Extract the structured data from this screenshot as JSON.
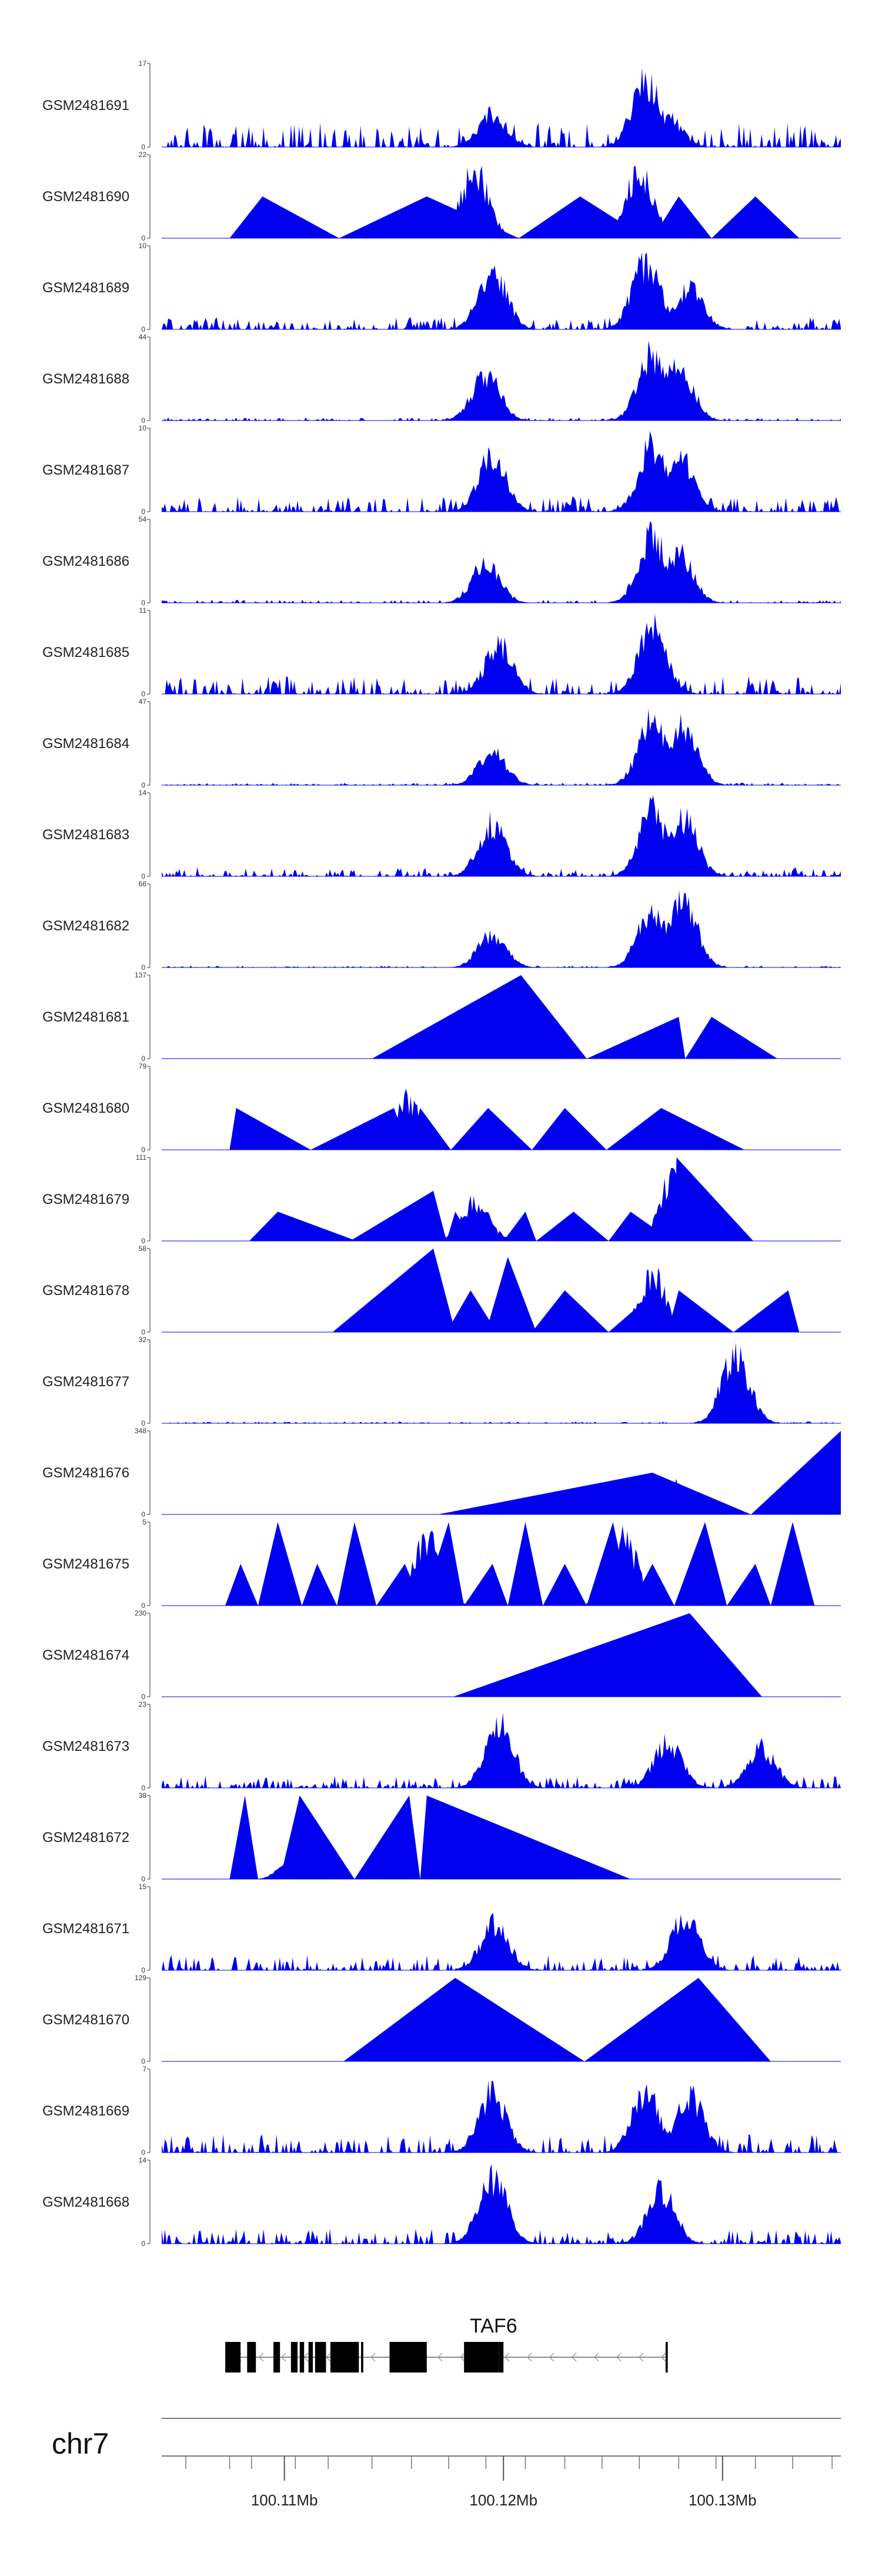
{
  "chart_data": {
    "type": "area",
    "description_free": true,
    "fill_color": "#0000f0",
    "tracks": [
      {
        "name": "GSM2481691",
        "ymax": "17",
        "ymin": "0",
        "noise": 4,
        "peaks": [
          [
            100.1195,
            0.5
          ],
          [
            100.1265,
            1.0
          ],
          [
            100.1275,
            0.45
          ]
        ],
        "tris": []
      },
      {
        "name": "GSM2481690",
        "ymax": "22",
        "ymin": "0",
        "noise": 0,
        "peaks": [
          [
            100.1187,
            1.0
          ],
          [
            100.1262,
            1.0
          ]
        ],
        "tris": [
          [
            100.1075,
            100.109,
            100.1125,
            0.5
          ],
          [
            100.1125,
            100.1165,
            100.1207,
            0.5
          ],
          [
            100.1207,
            100.1235,
            100.1265,
            0.5
          ],
          [
            100.1268,
            100.128,
            100.1295,
            0.5
          ],
          [
            100.1295,
            100.1315,
            100.1335,
            0.5
          ]
        ]
      },
      {
        "name": "GSM2481689",
        "ymax": "10",
        "ymin": "0",
        "noise": 2,
        "peaks": [
          [
            100.1195,
            0.9
          ],
          [
            100.1265,
            1.0
          ],
          [
            100.1285,
            0.6
          ]
        ],
        "tris": []
      },
      {
        "name": "GSM2481688",
        "ymax": "44",
        "ymin": "0",
        "noise": 0.5,
        "peaks": [
          [
            100.1192,
            0.7
          ],
          [
            100.1268,
            1.0
          ],
          [
            100.128,
            0.85
          ]
        ],
        "tris": []
      },
      {
        "name": "GSM2481687",
        "ymax": "10",
        "ymin": "0",
        "noise": 2.5,
        "peaks": [
          [
            100.1195,
            0.85
          ],
          [
            100.1268,
            1.0
          ],
          [
            100.128,
            0.9
          ]
        ],
        "tris": []
      },
      {
        "name": "GSM2481686",
        "ymax": "54",
        "ymin": "0",
        "noise": 0.5,
        "peaks": [
          [
            100.1192,
            0.6
          ],
          [
            100.1268,
            1.0
          ],
          [
            100.128,
            0.75
          ]
        ],
        "tris": []
      },
      {
        "name": "GSM2481685",
        "ymax": "11",
        "ymin": "0",
        "noise": 3,
        "peaks": [
          [
            100.1198,
            0.75
          ],
          [
            100.1268,
            1.0
          ]
        ],
        "tris": []
      },
      {
        "name": "GSM2481684",
        "ymax": "47",
        "ymin": "0",
        "noise": 0.4,
        "peaks": [
          [
            100.1195,
            0.5
          ],
          [
            100.1268,
            1.0
          ],
          [
            100.1282,
            0.9
          ]
        ],
        "tris": []
      },
      {
        "name": "GSM2481683",
        "ymax": "14",
        "ymin": "0",
        "noise": 1.5,
        "peaks": [
          [
            100.1195,
            0.8
          ],
          [
            100.1268,
            1.0
          ],
          [
            100.1282,
            0.9
          ]
        ],
        "tris": []
      },
      {
        "name": "GSM2481682",
        "ymax": "66",
        "ymin": "0",
        "noise": 0.3,
        "peaks": [
          [
            100.1195,
            0.5
          ],
          [
            100.1268,
            0.9
          ],
          [
            100.1282,
            1.0
          ]
        ],
        "tris": []
      },
      {
        "name": "GSM2481681",
        "ymax": "137",
        "ymin": "0",
        "noise": 0,
        "peaks": [
          [
            100.1208,
            0.4
          ]
        ],
        "tris": [
          [
            100.114,
            100.1208,
            100.1238,
            1.0
          ],
          [
            100.1238,
            100.128,
            100.1283,
            0.5
          ],
          [
            100.1283,
            100.1295,
            100.1325,
            0.5
          ]
        ]
      },
      {
        "name": "GSM2481680",
        "ymax": "79",
        "ymin": "0",
        "noise": 0,
        "peaks": [
          [
            100.1155,
            0.8
          ]
        ],
        "tris": [
          [
            100.1075,
            100.1078,
            100.1112,
            0.5
          ],
          [
            100.1112,
            100.115,
            100.1157,
            0.5
          ],
          [
            100.1157,
            100.1162,
            100.1176,
            0.5
          ],
          [
            100.1176,
            100.1193,
            100.1213,
            0.5
          ],
          [
            100.1213,
            100.1228,
            100.1247,
            0.5
          ],
          [
            100.1247,
            100.1272,
            100.131,
            0.5
          ]
        ]
      },
      {
        "name": "GSM2481679",
        "ymax": "111",
        "ymin": "0",
        "noise": 0,
        "peaks": [
          [
            100.1187,
            0.6
          ],
          [
            100.1278,
            1.0
          ]
        ],
        "tris": [
          [
            100.1084,
            100.1097,
            100.1133,
            0.35
          ],
          [
            100.113,
            100.1168,
            100.1174,
            0.6
          ],
          [
            100.1174,
            100.1178,
            100.1186,
            0.35
          ],
          [
            100.1186,
            100.1193,
            100.1198,
            0.35
          ],
          [
            100.12,
            100.121,
            100.1215,
            0.35
          ],
          [
            100.1215,
            100.1232,
            100.1248,
            0.35
          ],
          [
            100.1248,
            100.1258,
            100.1277,
            0.35
          ],
          [
            100.1278,
            100.1279,
            100.1314,
            1.0
          ]
        ]
      },
      {
        "name": "GSM2481678",
        "ymax": "58",
        "ymin": "0",
        "noise": 0,
        "peaks": [
          [
            100.1268,
            0.85
          ]
        ],
        "tris": [
          [
            100.1122,
            100.1168,
            100.1178,
            1.0
          ],
          [
            100.1174,
            100.1185,
            100.1197,
            0.5
          ],
          [
            100.1192,
            100.1202,
            100.1215,
            0.9
          ],
          [
            100.1213,
            100.1228,
            100.1248,
            0.5
          ],
          [
            100.1248,
            100.127,
            100.1275,
            0.5
          ],
          [
            100.1275,
            100.128,
            100.1305,
            0.5
          ],
          [
            100.1305,
            100.133,
            100.1335,
            0.5
          ]
        ]
      },
      {
        "name": "GSM2481677",
        "ymax": "32",
        "ymin": "0",
        "noise": 0.3,
        "peaks": [
          [
            100.1306,
            1.0
          ]
        ],
        "tris": []
      },
      {
        "name": "GSM2481676",
        "ymax": "348",
        "ymin": "0",
        "noise": 0,
        "peaks": [
          [
            100.1277,
            0.45
          ]
        ],
        "tris": [
          [
            100.117,
            100.1268,
            100.1313,
            0.5
          ],
          [
            100.1313,
            100.1354,
            100.1354,
            1.0
          ]
        ]
      },
      {
        "name": "GSM2481675",
        "ymax": "5",
        "ymin": "0",
        "noise": 0,
        "peaks": [
          [
            100.1165,
            1.0
          ],
          [
            100.1255,
            1.0
          ]
        ],
        "tris": [
          [
            100.1073,
            100.108,
            100.1088,
            0.5
          ],
          [
            100.1088,
            100.1097,
            100.1108,
            1.0
          ],
          [
            100.1108,
            100.1115,
            100.1124,
            0.5
          ],
          [
            100.1124,
            100.1132,
            100.1142,
            1.0
          ],
          [
            100.1142,
            100.1155,
            100.1163,
            0.5
          ],
          [
            100.1163,
            100.1175,
            100.1182,
            1.0
          ],
          [
            100.1182,
            100.1195,
            100.1202,
            0.5
          ],
          [
            100.1202,
            100.121,
            100.1218,
            1.0
          ],
          [
            100.1218,
            100.1228,
            100.1238,
            0.5
          ],
          [
            100.1238,
            100.125,
            100.1258,
            1.0
          ],
          [
            100.1258,
            100.1268,
            100.1278,
            0.5
          ],
          [
            100.1278,
            100.1292,
            100.1302,
            1.0
          ],
          [
            100.1302,
            100.1315,
            100.1322,
            0.5
          ],
          [
            100.1322,
            100.1332,
            100.1342,
            1.0
          ]
        ]
      },
      {
        "name": "GSM2481674",
        "ymax": "230",
        "ymin": "0",
        "noise": 0,
        "peaks": [],
        "tris": [
          [
            100.1177,
            100.1285,
            100.1318,
            1.0
          ]
        ]
      },
      {
        "name": "GSM2481673",
        "ymax": "23",
        "ymin": "0",
        "noise": 2,
        "peaks": [
          [
            100.1198,
            1.0
          ],
          [
            100.1275,
            0.7
          ],
          [
            100.1318,
            0.6
          ]
        ],
        "tris": []
      },
      {
        "name": "GSM2481672",
        "ymax": "38",
        "ymin": "0",
        "noise": 0,
        "peaks": [
          [
            100.1107,
            0.6
          ]
        ],
        "tris": [
          [
            100.1075,
            100.1082,
            100.1088,
            1.0
          ],
          [
            100.1098,
            100.1107,
            100.1132,
            1.0
          ],
          [
            100.1132,
            100.1157,
            100.1162,
            1.0
          ],
          [
            100.1162,
            100.1165,
            100.1258,
            1.0
          ]
        ]
      },
      {
        "name": "GSM2481671",
        "ymax": "15",
        "ymin": "0",
        "noise": 2.5,
        "peaks": [
          [
            100.1196,
            0.7
          ],
          [
            100.1283,
            0.8
          ]
        ],
        "tris": []
      },
      {
        "name": "GSM2481670",
        "ymax": "129",
        "ymin": "0",
        "noise": 0,
        "peaks": [],
        "tris": [
          [
            100.1127,
            100.1178,
            100.1237,
            1.0
          ],
          [
            100.1237,
            100.1289,
            100.1322,
            1.0
          ]
        ]
      },
      {
        "name": "GSM2481669",
        "ymax": "7",
        "ymin": "0",
        "noise": 3,
        "peaks": [
          [
            100.1195,
            0.9
          ],
          [
            100.1265,
            0.9
          ],
          [
            100.1285,
            0.85
          ]
        ],
        "tris": []
      },
      {
        "name": "GSM2481668",
        "ymax": "14",
        "ymin": "0",
        "noise": 2.5,
        "peaks": [
          [
            100.1195,
            1.0
          ],
          [
            100.1272,
            0.8
          ]
        ],
        "tris": []
      }
    ],
    "gene": {
      "name": "TAF6",
      "start": 100.1073,
      "end": 100.1275,
      "strand": "-",
      "exons": [
        [
          100.1073,
          100.108
        ],
        [
          100.1083,
          100.1087
        ],
        [
          100.1095,
          100.1098
        ],
        [
          100.1103,
          100.1106
        ],
        [
          100.1107,
          100.1109
        ],
        [
          100.1111,
          100.1113
        ],
        [
          100.1114,
          100.1119
        ],
        [
          100.1121,
          100.1134
        ],
        [
          100.1135,
          100.1136
        ],
        [
          100.1148,
          100.1165
        ],
        [
          100.1182,
          100.1198
        ],
        [
          100.1198,
          100.12
        ],
        [
          100.1274,
          100.1275
        ]
      ]
    },
    "chromosome": "chr7",
    "x_axis": {
      "range": [
        100.1044,
        100.1354
      ],
      "major_ticks": [
        100.11,
        100.12,
        100.13
      ],
      "major_labels": [
        "100.11Mb",
        "100.12Mb",
        "100.13Mb"
      ],
      "minor_ticks": [
        100.1055,
        100.1075,
        100.1085,
        100.1105,
        100.112,
        100.114,
        100.1158,
        100.1175,
        100.1192,
        100.121,
        100.1228,
        100.1245,
        100.1262,
        100.128,
        100.1297,
        100.1315,
        100.1332,
        100.135
      ]
    },
    "grid": false
  }
}
